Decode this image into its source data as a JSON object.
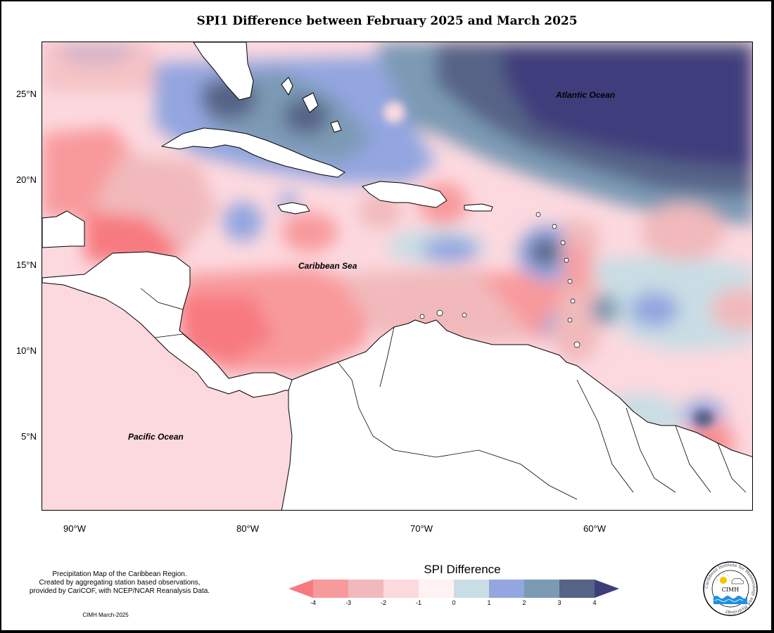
{
  "title": "SPI1 Difference between February 2025 and March 2025",
  "map": {
    "lat_labels": [
      "25°N",
      "20°N",
      "15°N",
      "10°N",
      "5°N"
    ],
    "lon_labels": [
      "90°W",
      "80°W",
      "70°W",
      "60°W"
    ],
    "labels": {
      "atlantic": "Atlantic Ocean",
      "caribbean": "Caribbean Sea",
      "pacific": "Pacific Ocean"
    }
  },
  "legend": {
    "title": "SPI Difference",
    "ticks": [
      "-4",
      "-3",
      "-2",
      "-1",
      "0",
      "1",
      "2",
      "3",
      "4"
    ],
    "colors": [
      "#f77a80",
      "#f89a9c",
      "#f1b9bb",
      "#fcd9df",
      "#fff2f3",
      "#c9dde4",
      "#93a6df",
      "#7b9ab4",
      "#566487",
      "#3f3e7c"
    ]
  },
  "caption": {
    "line1": "Precipitation Map of the Caribbean Region.",
    "line2": "Created by aggregating station based observations,",
    "line3": "provided by CariCOF, with NCEP/NCAR Reanalysis Data.",
    "credit": "CIMH March-2025"
  },
  "logo": {
    "abbr": "CIMH",
    "ring_text": "Caribbean Institute for Meteorology and Hydrology"
  }
}
